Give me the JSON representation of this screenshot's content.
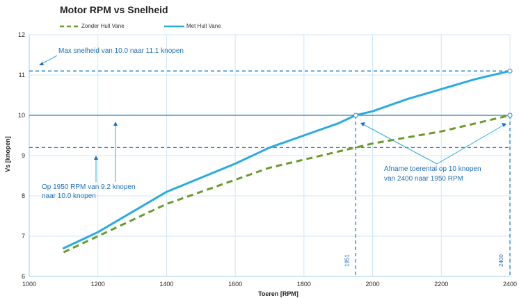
{
  "chart_data": {
    "type": "line",
    "title": "Motor RPM vs Snelheid",
    "xlabel": "Toeren [RPM]",
    "ylabel": "Vs [knopen]",
    "xlim": [
      1000,
      2400
    ],
    "ylim": [
      6,
      12
    ],
    "xticks": [
      1000,
      1200,
      1400,
      1600,
      1800,
      2000,
      2200,
      2400
    ],
    "yticks": [
      6,
      7,
      8,
      9,
      10,
      11,
      12
    ],
    "grid": true,
    "legend_position": "top",
    "series": [
      {
        "name": "Zonder Hull Vane",
        "color": "#6a9a2a",
        "style": "dashed",
        "x": [
          1100,
          1200,
          1300,
          1400,
          1500,
          1600,
          1700,
          1800,
          1900,
          2000,
          2100,
          2200,
          2300,
          2400
        ],
        "y": [
          6.6,
          7.0,
          7.4,
          7.8,
          8.1,
          8.4,
          8.7,
          8.9,
          9.1,
          9.3,
          9.45,
          9.6,
          9.8,
          10.0
        ]
      },
      {
        "name": "Met Hull Vane",
        "color": "#29abe2",
        "style": "solid",
        "x": [
          1100,
          1200,
          1300,
          1400,
          1500,
          1600,
          1700,
          1800,
          1900,
          1950,
          2000,
          2100,
          2200,
          2300,
          2400
        ],
        "y": [
          6.7,
          7.1,
          7.6,
          8.1,
          8.45,
          8.8,
          9.2,
          9.5,
          9.8,
          10.0,
          10.1,
          10.4,
          10.65,
          10.9,
          11.1
        ]
      }
    ],
    "reference_lines": {
      "horizontal": [
        {
          "y": 11.1,
          "style": "dashed"
        },
        {
          "y": 10.0,
          "style": "solid"
        },
        {
          "y": 9.2,
          "style": "dashed"
        }
      ],
      "vertical": [
        {
          "x": 1951,
          "label": "1951"
        },
        {
          "x": 2400,
          "label": "2400"
        }
      ]
    },
    "annotations": [
      {
        "lines": [
          "Max snelheid van 10.0 naar 11.1 knopen"
        ]
      },
      {
        "lines": [
          "Op 1950 RPM van 9.2 knopen",
          "naar 10.0 knopen"
        ]
      },
      {
        "lines": [
          "Afname toerental op 10 knopen",
          "van 2400 naar 1950 RPM"
        ]
      }
    ]
  }
}
